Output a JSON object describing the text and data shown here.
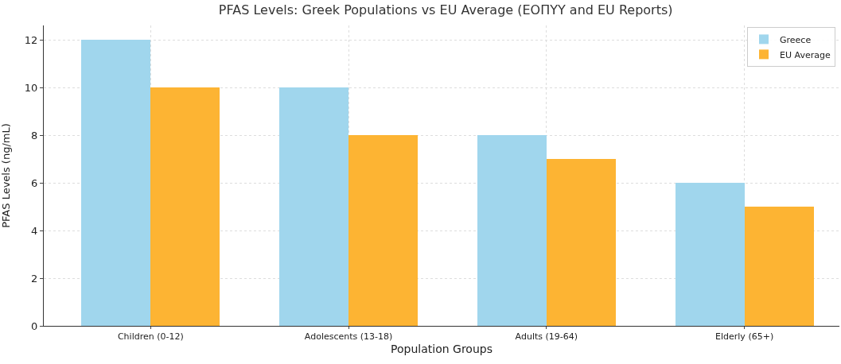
{
  "chart_data": {
    "type": "bar",
    "title": "PFAS Levels: Greek Populations vs EU Average (ΕΟΠΥΥ and EU Reports)",
    "xlabel": "Population Groups",
    "ylabel": "PFAS Levels (ng/mL)",
    "categories": [
      "Children (0-12)",
      "Adolescents (13-18)",
      "Adults (19-64)",
      "Elderly (65+)"
    ],
    "series": [
      {
        "name": "Greece",
        "color": "#a0d6ed",
        "values": [
          12,
          10,
          8,
          6
        ]
      },
      {
        "name": "EU Average",
        "color": "#fdb433",
        "values": [
          10,
          8,
          7,
          5
        ]
      }
    ],
    "ylim": [
      0,
      12.6
    ],
    "yticks": [
      0,
      2,
      4,
      6,
      8,
      10,
      12
    ],
    "grid": true,
    "legend": "top right"
  }
}
